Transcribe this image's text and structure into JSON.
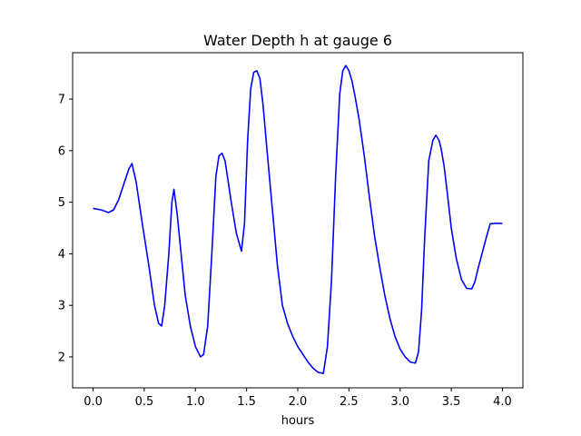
{
  "chart_data": {
    "type": "line",
    "title": "Water Depth h at gauge 6",
    "xlabel": "hours",
    "ylabel": "",
    "xlim": [
      -0.2,
      4.2
    ],
    "ylim": [
      1.4,
      7.9
    ],
    "xticks": [
      0.0,
      0.5,
      1.0,
      1.5,
      2.0,
      2.5,
      3.0,
      3.5,
      4.0
    ],
    "xtick_labels": [
      "0.0",
      "0.5",
      "1.0",
      "1.5",
      "2.0",
      "2.5",
      "3.0",
      "3.5",
      "4.0"
    ],
    "yticks": [
      2,
      3,
      4,
      5,
      6,
      7
    ],
    "ytick_labels": [
      "2",
      "3",
      "4",
      "5",
      "6",
      "7"
    ],
    "grid": false,
    "series": [
      {
        "color": "#0000ff",
        "x": [
          0.0,
          0.08,
          0.15,
          0.2,
          0.25,
          0.3,
          0.35,
          0.38,
          0.42,
          0.48,
          0.55,
          0.6,
          0.64,
          0.67,
          0.7,
          0.74,
          0.77,
          0.79,
          0.82,
          0.86,
          0.9,
          0.95,
          1.0,
          1.05,
          1.08,
          1.12,
          1.16,
          1.2,
          1.23,
          1.26,
          1.29,
          1.32,
          1.35,
          1.4,
          1.45,
          1.48,
          1.51,
          1.54,
          1.57,
          1.6,
          1.63,
          1.66,
          1.7,
          1.75,
          1.8,
          1.85,
          1.9,
          1.95,
          2.0,
          2.05,
          2.1,
          2.15,
          2.2,
          2.25,
          2.29,
          2.33,
          2.37,
          2.41,
          2.44,
          2.47,
          2.5,
          2.53,
          2.56,
          2.6,
          2.65,
          2.7,
          2.75,
          2.8,
          2.85,
          2.9,
          2.95,
          3.0,
          3.05,
          3.1,
          3.15,
          3.18,
          3.21,
          3.24,
          3.28,
          3.32,
          3.35,
          3.38,
          3.4,
          3.43,
          3.46,
          3.5,
          3.55,
          3.6,
          3.65,
          3.7,
          3.73,
          3.76,
          3.8,
          3.84,
          3.88,
          3.92,
          3.96,
          4.0
        ],
        "y": [
          4.88,
          4.85,
          4.8,
          4.85,
          5.05,
          5.35,
          5.65,
          5.75,
          5.4,
          4.6,
          3.7,
          3.0,
          2.65,
          2.6,
          3.0,
          4.0,
          5.0,
          5.25,
          4.8,
          4.0,
          3.2,
          2.6,
          2.2,
          2.0,
          2.05,
          2.6,
          4.0,
          5.5,
          5.9,
          5.95,
          5.8,
          5.4,
          5.0,
          4.4,
          4.05,
          4.6,
          6.2,
          7.2,
          7.52,
          7.55,
          7.4,
          6.9,
          6.0,
          4.9,
          3.8,
          3.0,
          2.65,
          2.4,
          2.2,
          2.05,
          1.9,
          1.78,
          1.7,
          1.68,
          2.2,
          3.5,
          5.5,
          7.1,
          7.55,
          7.65,
          7.55,
          7.35,
          7.05,
          6.6,
          5.9,
          5.1,
          4.35,
          3.75,
          3.2,
          2.75,
          2.4,
          2.15,
          2.0,
          1.9,
          1.88,
          2.1,
          2.9,
          4.3,
          5.8,
          6.2,
          6.3,
          6.2,
          6.05,
          5.7,
          5.2,
          4.5,
          3.9,
          3.5,
          3.33,
          3.32,
          3.45,
          3.7,
          4.0,
          4.3,
          4.58,
          4.59,
          4.59,
          4.59
        ]
      }
    ]
  }
}
